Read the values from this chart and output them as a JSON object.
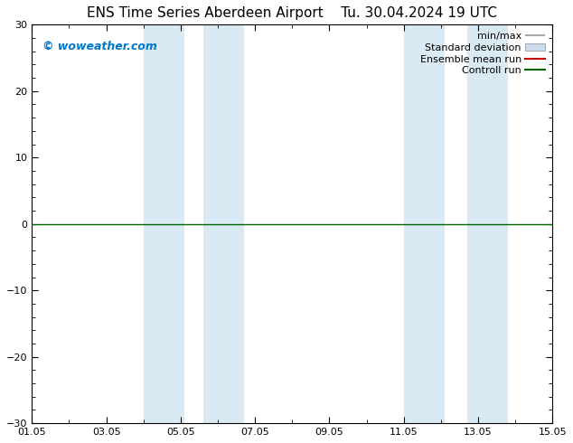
{
  "title": "ENS Time Series Aberdeen Airport",
  "title2": "Tu. 30.04.2024 19 UTC",
  "ylim": [
    -30,
    30
  ],
  "yticks": [
    -30,
    -20,
    -10,
    0,
    10,
    20,
    30
  ],
  "xtick_labels": [
    "01.05",
    "03.05",
    "05.05",
    "07.05",
    "09.05",
    "11.05",
    "13.05",
    "15.05"
  ],
  "xtick_positions": [
    0,
    2,
    4,
    6,
    8,
    10,
    12,
    14
  ],
  "x_total_days": 14,
  "blue_bands": [
    [
      3.0,
      4.1
    ],
    [
      4.6,
      5.7
    ],
    [
      10.0,
      11.1
    ],
    [
      11.7,
      12.8
    ]
  ],
  "band_color": "#daeaf5",
  "watermark": "© woweather.com",
  "watermark_color": "#0077cc",
  "legend_labels": [
    "min/max",
    "Standard deviation",
    "Ensemble mean run",
    "Controll run"
  ],
  "minmax_color": "#aaaaaa",
  "std_color": "#ccddee",
  "std_edge_color": "#aaaaaa",
  "mean_color": "#cc0000",
  "ctrl_color": "#006600",
  "zero_line_color": "#006600",
  "background_color": "#ffffff",
  "title_fontsize": 11,
  "tick_fontsize": 8,
  "legend_fontsize": 8
}
